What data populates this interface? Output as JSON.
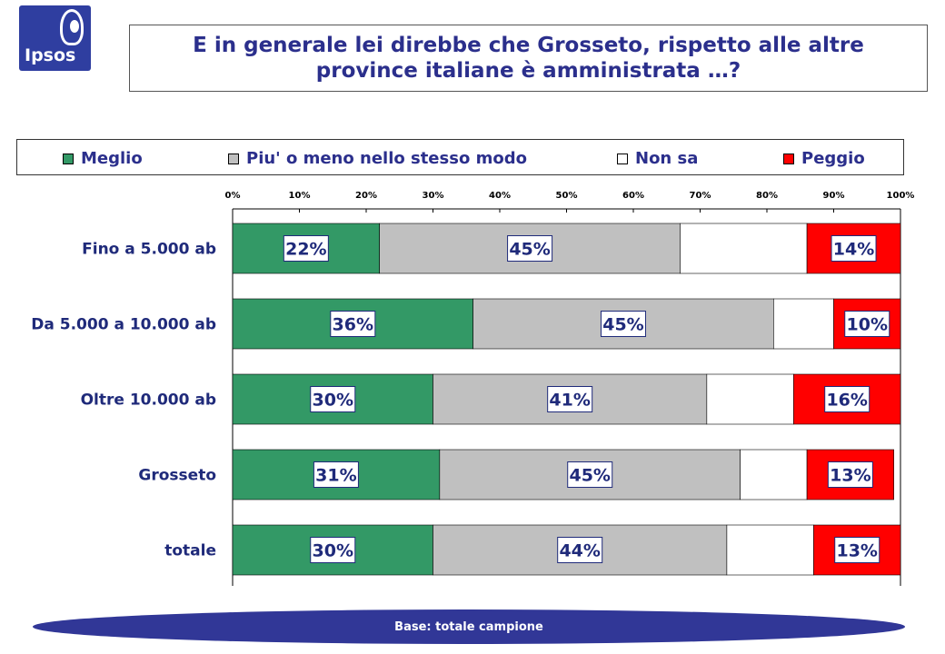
{
  "logo": {
    "text": "Ipsos"
  },
  "title": {
    "line1": "E in generale lei direbbe che Grosseto, rispetto alle altre",
    "line2": "province italiane è amministrata …?"
  },
  "legend": [
    {
      "label": "Meglio",
      "color": "#339966"
    },
    {
      "label": "Piu' o meno nello stesso modo",
      "color": "#c0c0c0"
    },
    {
      "label": "Non sa",
      "color": "#ffffff"
    },
    {
      "label": "Peggio",
      "color": "#ff0000"
    }
  ],
  "chart_data": {
    "type": "bar",
    "orientation": "horizontal",
    "stacked": true,
    "percent_stacked": true,
    "categories": [
      "Fino a 5.000 ab",
      "Da 5.000 a 10.000 ab",
      "Oltre 10.000 ab",
      "Grosseto",
      "totale"
    ],
    "series": [
      {
        "name": "Meglio",
        "color": "#339966",
        "values": [
          22,
          36,
          30,
          31,
          30
        ],
        "labels": [
          "22%",
          "36%",
          "30%",
          "31%",
          "30%"
        ]
      },
      {
        "name": "Piu' o meno nello stesso modo",
        "color": "#c0c0c0",
        "values": [
          45,
          45,
          41,
          45,
          44
        ],
        "labels": [
          "45%",
          "45%",
          "41%",
          "45%",
          "44%"
        ]
      },
      {
        "name": "Non sa",
        "color": "#ffffff",
        "values": [
          19,
          9,
          13,
          10,
          13
        ],
        "labels": [
          "",
          "",
          "",
          "",
          ""
        ]
      },
      {
        "name": "Peggio",
        "color": "#ff0000",
        "values": [
          14,
          10,
          16,
          13,
          13
        ],
        "labels": [
          "14%",
          "10%",
          "16%",
          "13%",
          "13%"
        ]
      }
    ],
    "x_ticks": [
      "0%",
      "10%",
      "20%",
      "30%",
      "40%",
      "50%",
      "60%",
      "70%",
      "80%",
      "90%",
      "100%"
    ],
    "xlim": [
      0,
      100
    ],
    "axis_position": "top",
    "legend_position": "top",
    "grid": false
  },
  "footer": {
    "text": "Base: totale campione"
  }
}
